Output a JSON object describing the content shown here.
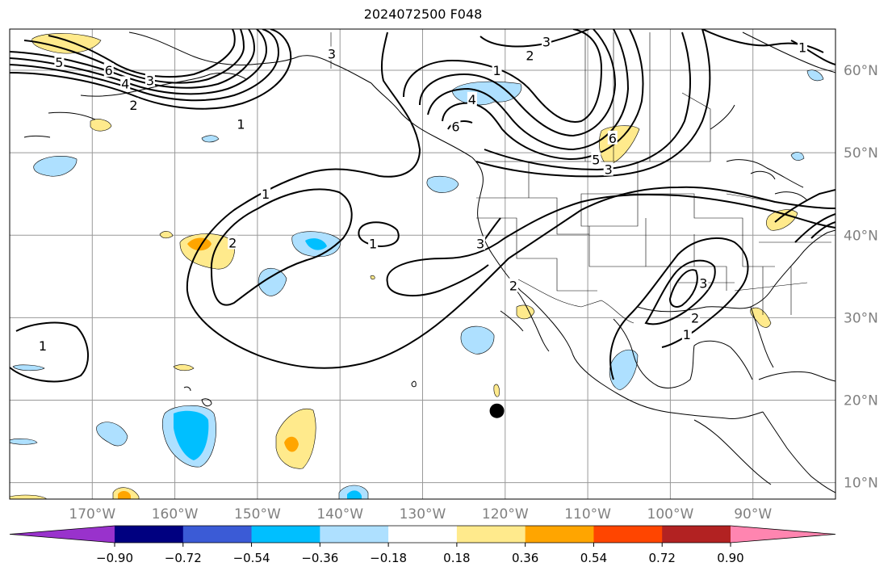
{
  "title": "2024072500 F048",
  "map": {
    "lon_range": [
      -180,
      -80
    ],
    "lat_range": [
      8,
      65
    ],
    "projection": "equirectangular",
    "grid": true,
    "lon_ticks": [
      "170°W",
      "160°W",
      "150°W",
      "140°W",
      "130°W",
      "120°W",
      "110°W",
      "100°W",
      "90°W"
    ],
    "lat_ticks": [
      "60°N",
      "50°N",
      "40°N",
      "30°N",
      "20°N",
      "10°N"
    ],
    "marker": {
      "lon": -121,
      "lat": 18.7,
      "color": "#000000"
    },
    "contour_labels": [
      {
        "text": "5",
        "lon": -174,
        "lat": 61.0
      },
      {
        "text": "6",
        "lon": -168,
        "lat": 60.0
      },
      {
        "text": "4",
        "lon": -166,
        "lat": 58.4
      },
      {
        "text": "2",
        "lon": -165,
        "lat": 55.8
      },
      {
        "text": "1",
        "lon": -152,
        "lat": 53.5
      },
      {
        "text": "3",
        "lon": -163,
        "lat": 58.8
      },
      {
        "text": "3",
        "lon": -141,
        "lat": 62.0
      },
      {
        "text": "3",
        "lon": -115,
        "lat": 63.5
      },
      {
        "text": "2",
        "lon": -117,
        "lat": 61.8
      },
      {
        "text": "1",
        "lon": -121,
        "lat": 60.0
      },
      {
        "text": "4",
        "lon": -124,
        "lat": 56.5
      },
      {
        "text": "6",
        "lon": -126,
        "lat": 53.2
      },
      {
        "text": "6",
        "lon": -107,
        "lat": 51.8
      },
      {
        "text": "5",
        "lon": -109,
        "lat": 49.2
      },
      {
        "text": "3",
        "lon": -107.5,
        "lat": 48.0
      },
      {
        "text": "1",
        "lon": -149,
        "lat": 45.0
      },
      {
        "text": "2",
        "lon": -153,
        "lat": 39.1
      },
      {
        "text": "1",
        "lon": -136,
        "lat": 39.0
      },
      {
        "text": "3",
        "lon": -123,
        "lat": 39.0
      },
      {
        "text": "2",
        "lon": -119,
        "lat": 33.9
      },
      {
        "text": "3",
        "lon": -96,
        "lat": 34.2
      },
      {
        "text": "2",
        "lon": -97,
        "lat": 30.0
      },
      {
        "text": "1",
        "lon": -98,
        "lat": 28.0
      },
      {
        "text": "1",
        "lon": -176,
        "lat": 26.6
      },
      {
        "text": "1",
        "lon": -84,
        "lat": 62.8
      }
    ]
  },
  "colorbar": {
    "colors": [
      "#9932CC",
      "#000080",
      "#3B5BD6",
      "#00BFFF",
      "#AEE0FF",
      "#FFFFFF",
      "#FFEA8C",
      "#FFA500",
      "#FF4500",
      "#B22222",
      "#FF85B0"
    ],
    "tick_labels": [
      "−0.90",
      "−0.72",
      "−0.54",
      "−0.36",
      "−0.18",
      "0.18",
      "0.36",
      "0.54",
      "0.72",
      "0.90"
    ]
  }
}
